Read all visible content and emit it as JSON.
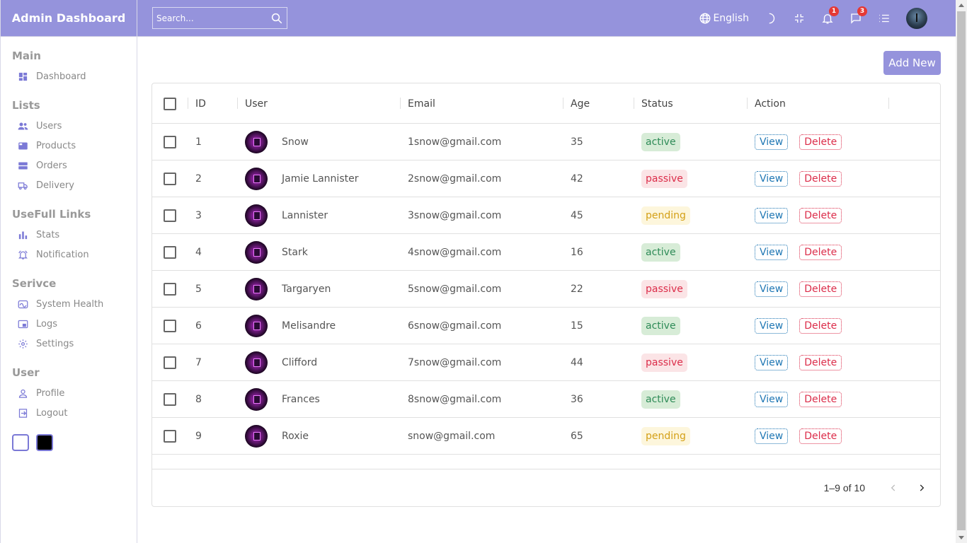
{
  "sidebar": {
    "logo": "Admin Dashboard",
    "sections": [
      {
        "title": "Main",
        "items": [
          {
            "label": "Dashboard",
            "icon": "dashboard-icon"
          }
        ]
      },
      {
        "title": "Lists",
        "items": [
          {
            "label": "Users",
            "icon": "users-icon"
          },
          {
            "label": "Products",
            "icon": "products-icon"
          },
          {
            "label": "Orders",
            "icon": "orders-icon"
          },
          {
            "label": "Delivery",
            "icon": "truck-icon"
          }
        ]
      },
      {
        "title": "UseFull Links",
        "items": [
          {
            "label": "Stats",
            "icon": "stats-icon"
          },
          {
            "label": "Notification",
            "icon": "bell-icon"
          }
        ]
      },
      {
        "title": "Serivce",
        "items": [
          {
            "label": "System Health",
            "icon": "health-icon"
          },
          {
            "label": "Logs",
            "icon": "logs-icon"
          },
          {
            "label": "Settings",
            "icon": "gear-icon"
          }
        ]
      },
      {
        "title": "User",
        "items": [
          {
            "label": "Profile",
            "icon": "profile-icon"
          },
          {
            "label": "Logout",
            "icon": "logout-icon"
          }
        ]
      }
    ]
  },
  "navbar": {
    "search_placeholder": "Search...",
    "language": "English",
    "notifications_count": "1",
    "messages_count": "3"
  },
  "main": {
    "add_new_label": "Add New"
  },
  "table": {
    "columns": [
      "ID",
      "User",
      "Email",
      "Age",
      "Status",
      "Action"
    ],
    "view_label": "View",
    "delete_label": "Delete",
    "rows": [
      {
        "id": "1",
        "user": "Snow",
        "email": "1snow@gmail.com",
        "age": "35",
        "status": "active"
      },
      {
        "id": "2",
        "user": "Jamie Lannister",
        "email": "2snow@gmail.com",
        "age": "42",
        "status": "passive"
      },
      {
        "id": "3",
        "user": "Lannister",
        "email": "3snow@gmail.com",
        "age": "45",
        "status": "pending"
      },
      {
        "id": "4",
        "user": "Stark",
        "email": "4snow@gmail.com",
        "age": "16",
        "status": "active"
      },
      {
        "id": "5",
        "user": "Targaryen",
        "email": "5snow@gmail.com",
        "age": "22",
        "status": "passive"
      },
      {
        "id": "6",
        "user": "Melisandre",
        "email": "6snow@gmail.com",
        "age": "15",
        "status": "active"
      },
      {
        "id": "7",
        "user": "Clifford",
        "email": "7snow@gmail.com",
        "age": "44",
        "status": "passive"
      },
      {
        "id": "8",
        "user": "Frances",
        "email": "8snow@gmail.com",
        "age": "36",
        "status": "active"
      },
      {
        "id": "9",
        "user": "Roxie",
        "email": "snow@gmail.com",
        "age": "65",
        "status": "pending"
      }
    ],
    "pagination": "1–9 of 10"
  },
  "colors": {
    "accent": "#9593dc",
    "icon": "#7b79d6"
  }
}
